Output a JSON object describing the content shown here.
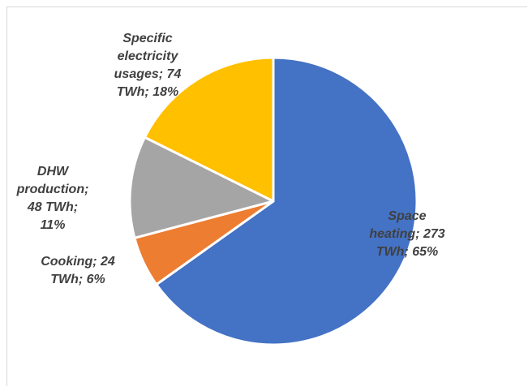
{
  "chart_data": {
    "type": "pie",
    "title": "",
    "start_angle_deg": 0,
    "direction": "clockwise",
    "slices": [
      {
        "label": "Space heating",
        "value": 273,
        "unit": "TWh",
        "percent": 65,
        "color": "#4472C4",
        "label_lines": [
          "Space",
          "heating; 273",
          "TWh; 65%"
        ]
      },
      {
        "label": "Cooking",
        "value": 24,
        "unit": "TWh",
        "percent": 6,
        "color": "#ED7D31",
        "label_lines": [
          "Cooking; 24",
          "TWh; 6%"
        ]
      },
      {
        "label": "DHW production",
        "value": 48,
        "unit": "TWh",
        "percent": 11,
        "color": "#A5A5A5",
        "label_lines": [
          "DHW",
          "production;",
          "48 TWh;",
          "11%"
        ]
      },
      {
        "label": "Specific electricity usages",
        "value": 74,
        "unit": "TWh",
        "percent": 18,
        "color": "#FFC000",
        "label_lines": [
          "Specific",
          "electricity",
          "usages; 74",
          "TWh; 18%"
        ]
      }
    ]
  }
}
